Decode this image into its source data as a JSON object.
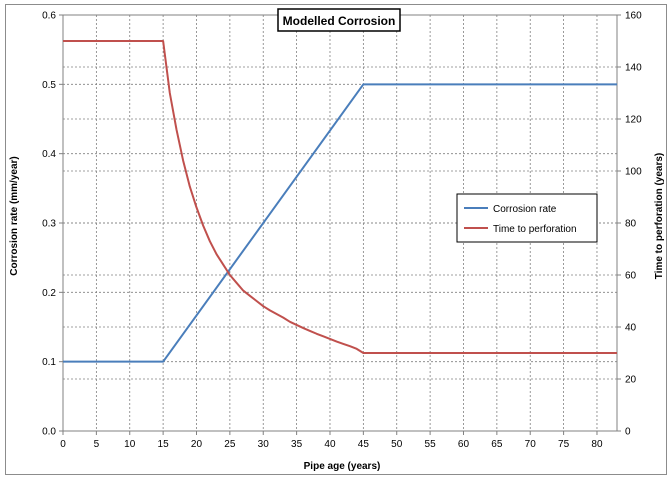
{
  "chart_data": {
    "type": "line",
    "title": "Modelled Corrosion",
    "xlabel": "Pipe age (years)",
    "ylabel": "Corrosion rate (mm/year)",
    "y2label": "Time to perforation (years)",
    "xlim": [
      0,
      83
    ],
    "ylim": [
      0,
      0.6
    ],
    "y2lim": [
      0,
      160
    ],
    "xticks": [
      "0",
      "5",
      "10",
      "15",
      "20",
      "25",
      "30",
      "35",
      "40",
      "45",
      "50",
      "55",
      "60",
      "65",
      "70",
      "75",
      "80"
    ],
    "yticks": [
      "0.0",
      "0.1",
      "0.2",
      "0.3",
      "0.4",
      "0.5",
      "0.6"
    ],
    "y2ticks": [
      "0",
      "20",
      "40",
      "60",
      "80",
      "100",
      "120",
      "140",
      "160"
    ],
    "grid": true,
    "legend_position": "right",
    "series": [
      {
        "name": "Corrosion rate",
        "axis": "left",
        "color": "#4a7ebb",
        "points": [
          [
            0,
            0.1
          ],
          [
            15,
            0.1
          ],
          [
            45,
            0.5
          ],
          [
            83,
            0.5
          ]
        ]
      },
      {
        "name": "Time to perforation",
        "axis": "right",
        "color": "#c0504d",
        "points": [
          [
            0,
            150
          ],
          [
            15,
            150
          ],
          [
            16,
            130
          ],
          [
            17,
            116
          ],
          [
            18,
            104
          ],
          [
            19,
            94
          ],
          [
            20,
            86
          ],
          [
            21,
            79
          ],
          [
            22,
            73
          ],
          [
            23,
            68
          ],
          [
            24,
            64
          ],
          [
            25,
            60
          ],
          [
            26,
            57
          ],
          [
            27,
            54
          ],
          [
            28,
            52
          ],
          [
            29,
            50
          ],
          [
            30,
            48
          ],
          [
            31,
            46.4
          ],
          [
            32,
            45
          ],
          [
            33,
            43.6
          ],
          [
            34,
            42
          ],
          [
            35,
            40.8
          ],
          [
            36,
            39.6
          ],
          [
            37,
            38.5
          ],
          [
            38,
            37.4
          ],
          [
            39,
            36.4
          ],
          [
            40,
            35.4
          ],
          [
            41,
            34.4
          ],
          [
            42,
            33.5
          ],
          [
            43,
            32.6
          ],
          [
            44,
            31.6
          ],
          [
            45,
            30
          ],
          [
            83,
            30
          ]
        ]
      }
    ]
  }
}
